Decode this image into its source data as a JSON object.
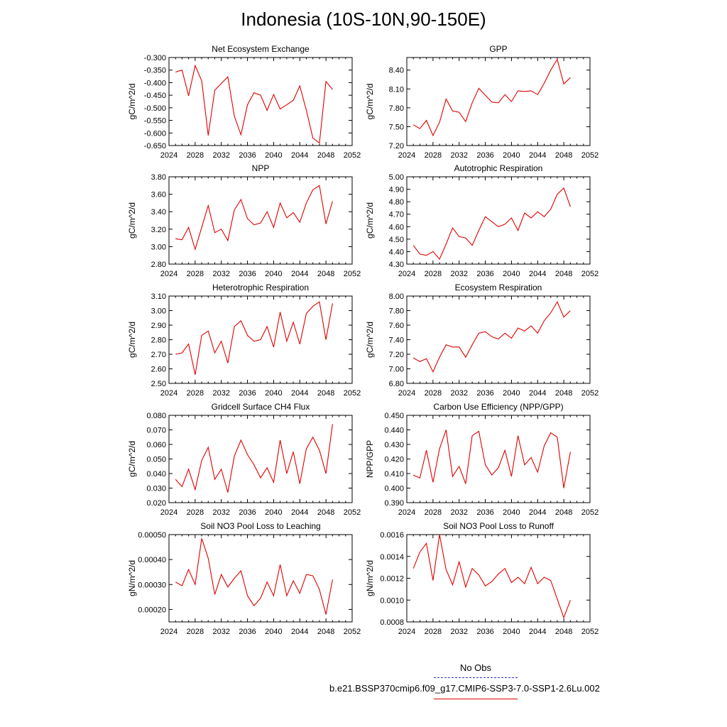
{
  "title": "Indonesia (10S-10N,90-150E)",
  "legend": {
    "obs_label": "No Obs",
    "obs_color": "#3333cc",
    "run_label": "b.e21.BSSP370cmip6.f09_g17.CMIP6-SSP3-7.0-SSP1-2.6Lu.002",
    "run_color": "#e00000"
  },
  "chart_data": [
    {
      "type": "line",
      "title": "Net Ecosystem Exchange",
      "ylabel": "gC/m^2/d",
      "xlim": [
        2024,
        2052
      ],
      "xticks": [
        2024,
        2028,
        2032,
        2036,
        2040,
        2044,
        2048,
        2052
      ],
      "ylim": [
        -0.65,
        -0.3
      ],
      "yticks": [
        "-0.300",
        "-0.350",
        "-0.400",
        "-0.450",
        "-0.500",
        "-0.550",
        "-0.600",
        "-0.650"
      ],
      "x": [
        2025,
        2026,
        2027,
        2028,
        2029,
        2030,
        2031,
        2032,
        2033,
        2034,
        2035,
        2036,
        2037,
        2038,
        2039,
        2040,
        2041,
        2042,
        2043,
        2044,
        2045,
        2046,
        2047,
        2048,
        2049
      ],
      "y": [
        -0.358,
        -0.35,
        -0.452,
        -0.332,
        -0.393,
        -0.61,
        -0.43,
        -0.403,
        -0.377,
        -0.533,
        -0.607,
        -0.488,
        -0.44,
        -0.45,
        -0.51,
        -0.447,
        -0.505,
        -0.488,
        -0.47,
        -0.413,
        -0.51,
        -0.62,
        -0.64,
        -0.395,
        -0.427
      ]
    },
    {
      "type": "line",
      "title": "GPP",
      "ylabel": "gC/m^2/d",
      "xlim": [
        2024,
        2052
      ],
      "xticks": [
        2024,
        2028,
        2032,
        2036,
        2040,
        2044,
        2048,
        2052
      ],
      "ylim": [
        7.2,
        8.6
      ],
      "yticks": [
        "8.40",
        "8.10",
        "7.80",
        "7.50",
        "7.20"
      ],
      "x": [
        2025,
        2026,
        2027,
        2028,
        2029,
        2030,
        2031,
        2032,
        2033,
        2034,
        2035,
        2036,
        2037,
        2038,
        2039,
        2040,
        2041,
        2042,
        2043,
        2044,
        2045,
        2046,
        2047,
        2048,
        2049
      ],
      "y": [
        7.53,
        7.47,
        7.6,
        7.36,
        7.57,
        7.94,
        7.75,
        7.73,
        7.58,
        7.88,
        8.11,
        8.0,
        7.89,
        7.88,
        8.01,
        7.9,
        8.07,
        8.06,
        8.07,
        8.01,
        8.19,
        8.4,
        8.57,
        8.18,
        8.28
      ]
    },
    {
      "type": "line",
      "title": "NPP",
      "ylabel": "gC/m^2/d",
      "xlim": [
        2024,
        2052
      ],
      "xticks": [
        2024,
        2028,
        2032,
        2036,
        2040,
        2044,
        2048,
        2052
      ],
      "ylim": [
        2.8,
        3.8
      ],
      "yticks": [
        "3.80",
        "3.60",
        "3.40",
        "3.20",
        "3.00",
        "2.80"
      ],
      "x": [
        2025,
        2026,
        2027,
        2028,
        2029,
        2030,
        2031,
        2032,
        2033,
        2034,
        2035,
        2036,
        2037,
        2038,
        2039,
        2040,
        2041,
        2042,
        2043,
        2044,
        2045,
        2046,
        2047,
        2048,
        2049
      ],
      "y": [
        3.09,
        3.08,
        3.22,
        2.97,
        3.22,
        3.47,
        3.16,
        3.2,
        3.07,
        3.42,
        3.54,
        3.32,
        3.25,
        3.27,
        3.4,
        3.22,
        3.5,
        3.33,
        3.39,
        3.28,
        3.5,
        3.65,
        3.7,
        3.26,
        3.52
      ]
    },
    {
      "type": "line",
      "title": "Autotrophic Respiration",
      "ylabel": "gC/m^2/d",
      "xlim": [
        2024,
        2052
      ],
      "xticks": [
        2024,
        2028,
        2032,
        2036,
        2040,
        2044,
        2048,
        2052
      ],
      "ylim": [
        4.3,
        5.0
      ],
      "yticks": [
        "5.00",
        "4.90",
        "4.80",
        "4.70",
        "4.60",
        "4.50",
        "4.40",
        "4.30"
      ],
      "x": [
        2025,
        2026,
        2027,
        2028,
        2029,
        2030,
        2031,
        2032,
        2033,
        2034,
        2035,
        2036,
        2037,
        2038,
        2039,
        2040,
        2041,
        2042,
        2043,
        2044,
        2045,
        2046,
        2047,
        2048,
        2049
      ],
      "y": [
        4.45,
        4.38,
        4.37,
        4.4,
        4.34,
        4.46,
        4.59,
        4.52,
        4.51,
        4.45,
        4.57,
        4.68,
        4.64,
        4.6,
        4.62,
        4.67,
        4.57,
        4.71,
        4.67,
        4.72,
        4.68,
        4.74,
        4.86,
        4.91,
        4.76
      ]
    },
    {
      "type": "line",
      "title": "Heterotrophic Respiration",
      "ylabel": "gC/m^2/d",
      "xlim": [
        2024,
        2052
      ],
      "xticks": [
        2024,
        2028,
        2032,
        2036,
        2040,
        2044,
        2048,
        2052
      ],
      "ylim": [
        2.5,
        3.1
      ],
      "yticks": [
        "3.10",
        "3.00",
        "2.90",
        "2.80",
        "2.70",
        "2.60",
        "2.50"
      ],
      "x": [
        2025,
        2026,
        2027,
        2028,
        2029,
        2030,
        2031,
        2032,
        2033,
        2034,
        2035,
        2036,
        2037,
        2038,
        2039,
        2040,
        2041,
        2042,
        2043,
        2044,
        2045,
        2046,
        2047,
        2048,
        2049
      ],
      "y": [
        2.7,
        2.71,
        2.77,
        2.56,
        2.83,
        2.86,
        2.71,
        2.79,
        2.64,
        2.89,
        2.93,
        2.83,
        2.79,
        2.8,
        2.89,
        2.75,
        2.99,
        2.79,
        2.92,
        2.77,
        2.98,
        3.03,
        3.06,
        2.8,
        3.05
      ]
    },
    {
      "type": "line",
      "title": "Ecosystem Respiration",
      "ylabel": "gC/m^2/d",
      "xlim": [
        2024,
        2052
      ],
      "xticks": [
        2024,
        2028,
        2032,
        2036,
        2040,
        2044,
        2048,
        2052
      ],
      "ylim": [
        6.8,
        8.0
      ],
      "yticks": [
        "8.00",
        "7.80",
        "7.60",
        "7.40",
        "7.20",
        "7.00",
        "6.80"
      ],
      "x": [
        2025,
        2026,
        2027,
        2028,
        2029,
        2030,
        2031,
        2032,
        2033,
        2034,
        2035,
        2036,
        2037,
        2038,
        2039,
        2040,
        2041,
        2042,
        2043,
        2044,
        2045,
        2046,
        2047,
        2048,
        2049
      ],
      "y": [
        7.15,
        7.1,
        7.14,
        6.96,
        7.16,
        7.33,
        7.3,
        7.3,
        7.16,
        7.33,
        7.49,
        7.51,
        7.44,
        7.41,
        7.49,
        7.42,
        7.56,
        7.52,
        7.59,
        7.49,
        7.66,
        7.77,
        7.92,
        7.71,
        7.8
      ]
    },
    {
      "type": "line",
      "title": "Gridcell Surface CH4 Flux",
      "ylabel": "gC/m^2/d",
      "xlim": [
        2024,
        2052
      ],
      "xticks": [
        2024,
        2028,
        2032,
        2036,
        2040,
        2044,
        2048,
        2052
      ],
      "ylim": [
        0.02,
        0.08
      ],
      "yticks": [
        "0.080",
        "0.070",
        "0.060",
        "0.050",
        "0.040",
        "0.030",
        "0.020"
      ],
      "x": [
        2025,
        2026,
        2027,
        2028,
        2029,
        2030,
        2031,
        2032,
        2033,
        2034,
        2035,
        2036,
        2037,
        2038,
        2039,
        2040,
        2041,
        2042,
        2043,
        2044,
        2045,
        2046,
        2047,
        2048,
        2049
      ],
      "y": [
        0.036,
        0.031,
        0.043,
        0.029,
        0.049,
        0.058,
        0.036,
        0.043,
        0.027,
        0.052,
        0.063,
        0.053,
        0.046,
        0.037,
        0.044,
        0.034,
        0.063,
        0.04,
        0.055,
        0.033,
        0.057,
        0.065,
        0.056,
        0.04,
        0.074
      ]
    },
    {
      "type": "line",
      "title": "Carbon Use Efficiency (NPP/GPP)",
      "ylabel": "NPP/GPP",
      "xlim": [
        2024,
        2052
      ],
      "xticks": [
        2024,
        2028,
        2032,
        2036,
        2040,
        2044,
        2048,
        2052
      ],
      "ylim": [
        0.39,
        0.45
      ],
      "yticks": [
        "0.450",
        "0.440",
        "0.430",
        "0.420",
        "0.410",
        "0.400",
        "0.390"
      ],
      "x": [
        2025,
        2026,
        2027,
        2028,
        2029,
        2030,
        2031,
        2032,
        2033,
        2034,
        2035,
        2036,
        2037,
        2038,
        2039,
        2040,
        2041,
        2042,
        2043,
        2044,
        2045,
        2046,
        2047,
        2048,
        2049
      ],
      "y": [
        0.409,
        0.407,
        0.426,
        0.404,
        0.427,
        0.44,
        0.408,
        0.415,
        0.403,
        0.436,
        0.439,
        0.416,
        0.409,
        0.414,
        0.426,
        0.408,
        0.436,
        0.416,
        0.421,
        0.411,
        0.429,
        0.438,
        0.435,
        0.4,
        0.425
      ]
    },
    {
      "type": "line",
      "title": "Soil NO3 Pool Loss to Leaching",
      "ylabel": "gN/m^2/d",
      "xlim": [
        2024,
        2052
      ],
      "xticks": [
        2024,
        2028,
        2032,
        2036,
        2040,
        2044,
        2048,
        2052
      ],
      "ylim": [
        0.00015,
        0.0005
      ],
      "yticks": [
        "0.00050",
        "0.00040",
        "0.00030",
        "0.00020"
      ],
      "ytick_values": [
        0.0005,
        0.0004,
        0.0003,
        0.0002
      ],
      "x": [
        2025,
        2026,
        2027,
        2028,
        2029,
        2030,
        2031,
        2032,
        2033,
        2034,
        2035,
        2036,
        2037,
        2038,
        2039,
        2040,
        2041,
        2042,
        2043,
        2044,
        2045,
        2046,
        2047,
        2048,
        2049
      ],
      "y": [
        0.00031,
        0.000295,
        0.00036,
        0.0003,
        0.000485,
        0.000405,
        0.00026,
        0.00034,
        0.00029,
        0.000325,
        0.000355,
        0.000255,
        0.000215,
        0.000245,
        0.00031,
        0.000255,
        0.00038,
        0.000255,
        0.000315,
        0.000265,
        0.00034,
        0.000335,
        0.00028,
        0.00018,
        0.00032
      ]
    },
    {
      "type": "line",
      "title": "Soil NO3 Pool Loss to Runoff",
      "ylabel": "gN/m^2/d",
      "xlim": [
        2024,
        2052
      ],
      "xticks": [
        2024,
        2028,
        2032,
        2036,
        2040,
        2044,
        2048,
        2052
      ],
      "ylim": [
        0.0008,
        0.0016
      ],
      "yticks": [
        "0.0016",
        "0.0014",
        "0.0012",
        "0.0010",
        "0.0008"
      ],
      "x": [
        2025,
        2026,
        2027,
        2028,
        2029,
        2030,
        2031,
        2032,
        2033,
        2034,
        2035,
        2036,
        2037,
        2038,
        2039,
        2040,
        2041,
        2042,
        2043,
        2044,
        2045,
        2046,
        2047,
        2048,
        2049
      ],
      "y": [
        0.00129,
        0.00144,
        0.00152,
        0.00118,
        0.0016,
        0.00128,
        0.00114,
        0.00135,
        0.00112,
        0.00129,
        0.00123,
        0.00113,
        0.00117,
        0.00124,
        0.00129,
        0.00116,
        0.00121,
        0.00115,
        0.0013,
        0.00115,
        0.00121,
        0.00118,
        0.00101,
        0.00084,
        0.001
      ]
    }
  ]
}
